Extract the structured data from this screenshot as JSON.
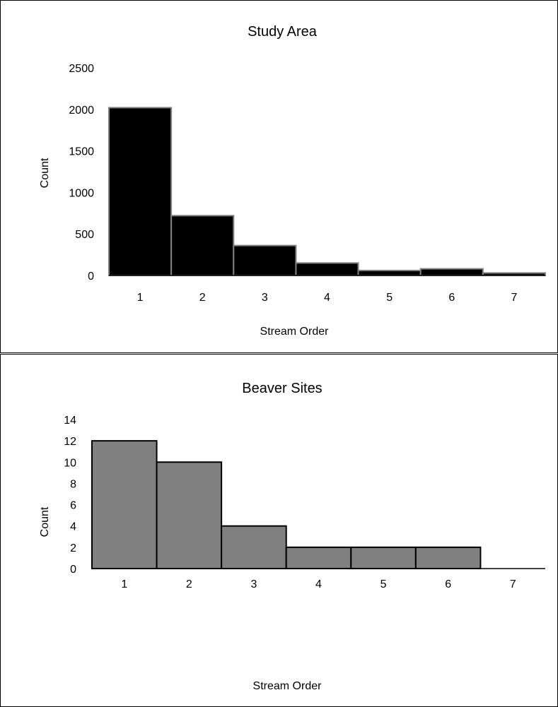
{
  "chart_data": [
    {
      "type": "bar",
      "title": "Study Area",
      "xlabel": "Stream Order",
      "ylabel": "Count",
      "categories": [
        "1",
        "2",
        "3",
        "4",
        "5",
        "6",
        "7"
      ],
      "values": [
        2020,
        720,
        360,
        150,
        60,
        80,
        30
      ],
      "ylim": [
        0,
        2500
      ],
      "yticks": [
        "0",
        "500",
        "1000",
        "1500",
        "2000",
        "2500"
      ],
      "grid": false,
      "bar_color": "#000000",
      "bar_edge": "#808080"
    },
    {
      "type": "bar",
      "title": "Beaver Sites",
      "xlabel": "Stream Order",
      "ylabel": "Count",
      "categories": [
        "1",
        "2",
        "3",
        "4",
        "5",
        "6",
        "7"
      ],
      "values": [
        12,
        10,
        4,
        2,
        2,
        2,
        0
      ],
      "ylim": [
        0,
        14
      ],
      "yticks": [
        "0",
        "2",
        "4",
        "6",
        "8",
        "10",
        "12",
        "14"
      ],
      "grid": false,
      "bar_color": "#808080",
      "bar_edge": "#000000"
    }
  ]
}
